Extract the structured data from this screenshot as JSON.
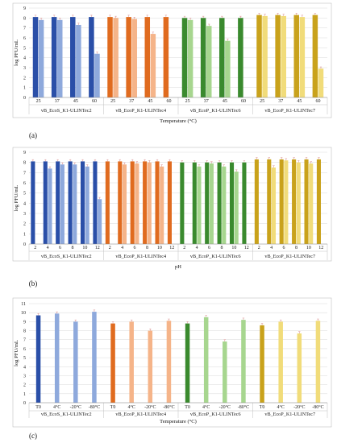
{
  "chart_data": [
    {
      "type": "bar",
      "panel": "(a)",
      "ylabel": "log PFU/mL",
      "xlabel": "Temperature (°C)",
      "ylim": [
        0,
        9
      ],
      "yticks": [
        0,
        1,
        2,
        3,
        4,
        5,
        6,
        7,
        8,
        9
      ],
      "grid": true,
      "bars_per_category": 2,
      "groups": [
        {
          "name": "vB_EcoS_K1-ULINTec2",
          "categories": [
            "25",
            "37",
            "45",
            "60"
          ],
          "values": [
            [
              8.1,
              7.8
            ],
            [
              8.1,
              7.8
            ],
            [
              8.1,
              7.3
            ],
            [
              8.1,
              4.4
            ]
          ],
          "colors": [
            "#2a4fa8",
            "#8ea9dc"
          ]
        },
        {
          "name": "vB_EcoP_K1-ULINTec4",
          "categories": [
            "25",
            "37",
            "45",
            "60"
          ],
          "values": [
            [
              8.1,
              8.0
            ],
            [
              8.1,
              7.9
            ],
            [
              8.1,
              6.4
            ],
            [
              8.1,
              0
            ]
          ],
          "colors": [
            "#e06b1f",
            "#f5b489"
          ]
        },
        {
          "name": "vB_EcoP_K1-ULINTec6",
          "categories": [
            "25",
            "37",
            "45",
            "60"
          ],
          "values": [
            [
              8.0,
              7.8
            ],
            [
              8.0,
              7.2
            ],
            [
              8.0,
              5.7
            ],
            [
              8.0,
              0
            ]
          ],
          "colors": [
            "#3a8a2e",
            "#a7d68f"
          ]
        },
        {
          "name": "vB_EcoP_K1-ULINTec7",
          "categories": [
            "25",
            "37",
            "45",
            "60"
          ],
          "values": [
            [
              8.3,
              8.2
            ],
            [
              8.3,
              8.2
            ],
            [
              8.3,
              8.1
            ],
            [
              8.3,
              2.9
            ]
          ],
          "colors": [
            "#c9a21b",
            "#f1dc7a"
          ]
        }
      ]
    },
    {
      "type": "bar",
      "panel": "(b)",
      "ylabel": "log PFU/mL",
      "xlabel": "pH",
      "ylim": [
        0,
        9
      ],
      "yticks": [
        0,
        1,
        2,
        3,
        4,
        5,
        6,
        7,
        8,
        9
      ],
      "grid": true,
      "bars_per_category": 2,
      "groups": [
        {
          "name": "vB_EcoS_K1-ULINTec2",
          "categories": [
            "2",
            "4",
            "6",
            "8",
            "10",
            "12"
          ],
          "values": [
            [
              8.1,
              0
            ],
            [
              8.1,
              7.4
            ],
            [
              8.1,
              7.8
            ],
            [
              8.1,
              7.8
            ],
            [
              8.1,
              7.6
            ],
            [
              8.1,
              4.4
            ]
          ],
          "colors": [
            "#2a4fa8",
            "#8ea9dc"
          ]
        },
        {
          "name": "vB_EcoP_K1-ULINTec4",
          "categories": [
            "2",
            "4",
            "6",
            "8",
            "10",
            "12"
          ],
          "values": [
            [
              8.1,
              0
            ],
            [
              8.1,
              7.8
            ],
            [
              8.1,
              7.9
            ],
            [
              8.1,
              8.0
            ],
            [
              8.1,
              7.6
            ],
            [
              8.1,
              0
            ]
          ],
          "colors": [
            "#e06b1f",
            "#f5b489"
          ]
        },
        {
          "name": "vB_EcoP_K1-ULINTec6",
          "categories": [
            "2",
            "4",
            "6",
            "8",
            "10",
            "12"
          ],
          "values": [
            [
              8.0,
              0
            ],
            [
              8.0,
              7.6
            ],
            [
              8.0,
              7.9
            ],
            [
              8.0,
              7.6
            ],
            [
              8.0,
              7.1
            ],
            [
              8.0,
              0
            ]
          ],
          "colors": [
            "#3a8a2e",
            "#a7d68f"
          ]
        },
        {
          "name": "vB_EcoP_K1-ULINTec7",
          "categories": [
            "2",
            "4",
            "6",
            "8",
            "10",
            "12"
          ],
          "values": [
            [
              8.3,
              0
            ],
            [
              8.3,
              7.5
            ],
            [
              8.3,
              8.2
            ],
            [
              8.3,
              8.0
            ],
            [
              8.3,
              7.9
            ],
            [
              8.3,
              0
            ]
          ],
          "colors": [
            "#c9a21b",
            "#f1dc7a"
          ]
        }
      ]
    },
    {
      "type": "bar",
      "panel": "(c)",
      "ylabel": "log PFU/mL",
      "xlabel": "Temperature (°C)",
      "ylim": [
        0,
        11
      ],
      "yticks": [
        0,
        1,
        2,
        3,
        4,
        5,
        6,
        7,
        8,
        9,
        10,
        11
      ],
      "grid": true,
      "bars_per_category": 1,
      "groups": [
        {
          "name": "vB_EcoS_K1-ULINTec2",
          "categories": [
            "T0",
            "4°C",
            "-20°C",
            "-80°C"
          ],
          "values": [
            9.7,
            9.9,
            9.0,
            10.1
          ],
          "colors": [
            "#2a4fa8",
            "#8ea9dc"
          ]
        },
        {
          "name": "vB_EcoP_K1-ULINTec4",
          "categories": [
            "T0",
            "4°C",
            "-20°C",
            "-80°C"
          ],
          "values": [
            8.8,
            9.0,
            8.0,
            9.1
          ],
          "colors": [
            "#e06b1f",
            "#f5b489"
          ]
        },
        {
          "name": "vB_EcoP_K1-ULINTec6",
          "categories": [
            "T0",
            "4°C",
            "-20°C",
            "-80°C"
          ],
          "values": [
            8.8,
            9.5,
            6.8,
            9.2
          ],
          "colors": [
            "#3a8a2e",
            "#a7d68f"
          ]
        },
        {
          "name": "vB_EcoP_K1-ULINTec7",
          "categories": [
            "T0",
            "4°C",
            "-20°C",
            "-80°C"
          ],
          "values": [
            8.6,
            9.0,
            7.7,
            9.1
          ],
          "colors": [
            "#c9a21b",
            "#f1dc7a"
          ]
        }
      ]
    }
  ]
}
